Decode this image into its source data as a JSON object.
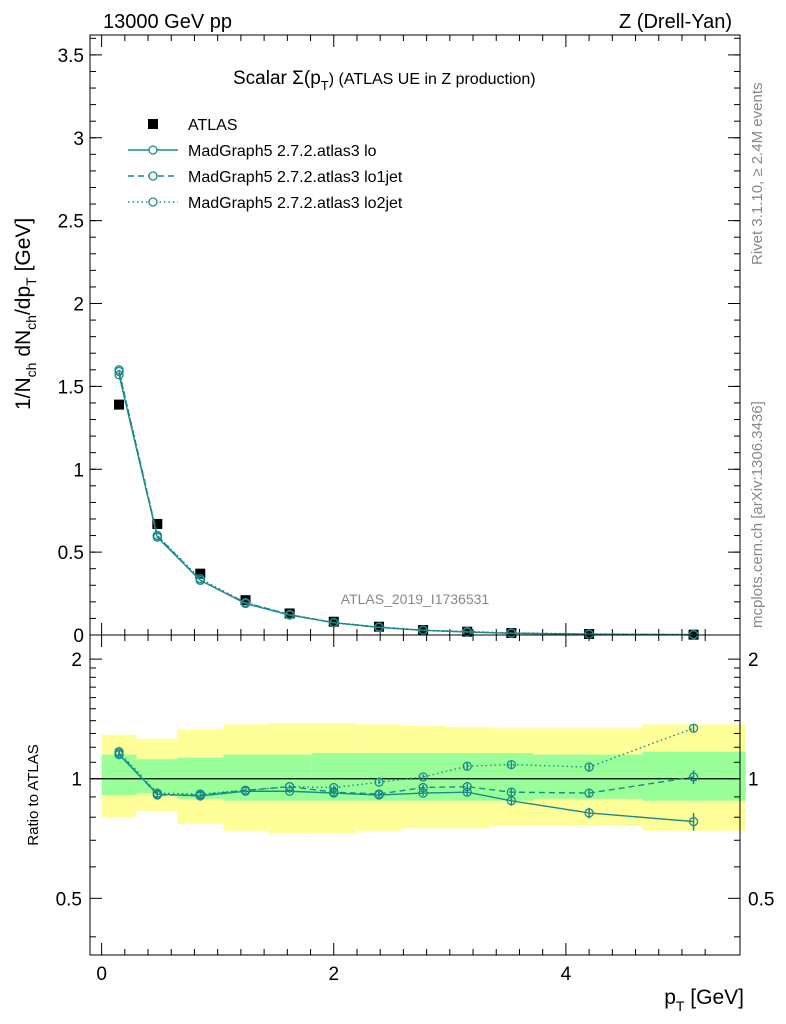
{
  "header": {
    "left": "13000 GeV pp",
    "right": "Z (Drell-Yan)"
  },
  "side_labels": {
    "rivet": "Rivet 3.1.10, ≥ 2.4M events",
    "mcplots": "mcplots.cern.ch [arXiv:1306.3436]"
  },
  "colors": {
    "atlas": "#000000",
    "mc": "#1a8a8a",
    "band_inner": "#99ff99",
    "band_outer": "#ffff99"
  },
  "chart_data": [
    {
      "type": "line",
      "title_prefix": "Scalar Σ(p",
      "title_sub": "T",
      "title_suffix": ") (ATLAS UE in Z production)",
      "watermark": "ATLAS_2019_I1736531",
      "ylabel": "1/N_ch dN_ch/dp_T [GeV]",
      "ylim": [
        0,
        3.62
      ],
      "yticks": [
        0,
        0.5,
        1,
        1.5,
        2,
        2.5,
        3,
        3.5
      ],
      "ytick_labels": [
        "0",
        "0.5",
        "1",
        "1.5",
        "2",
        "2.5",
        "3",
        "3.5"
      ],
      "xlim": [
        -0.1,
        5.5
      ],
      "x": [
        0.15,
        0.48,
        0.85,
        1.24,
        1.62,
        2.0,
        2.39,
        2.77,
        3.15,
        3.53,
        4.2,
        5.1
      ],
      "series": [
        {
          "name": "ATLAS",
          "style": "marker",
          "values": [
            1.39,
            0.67,
            0.37,
            0.21,
            0.13,
            0.08,
            0.05,
            0.03,
            0.02,
            0.012,
            0.006,
            0.002
          ]
        },
        {
          "name": "MadGraph5 2.7.2.atlas3 lo",
          "style": "solid",
          "values": [
            1.57,
            0.59,
            0.33,
            0.19,
            0.12,
            0.074,
            0.046,
            0.028,
            0.018,
            0.0105,
            0.0049,
            0.0016
          ]
        },
        {
          "name": "MadGraph5 2.7.2.atlas3 lo1jet",
          "style": "dashed",
          "values": [
            1.59,
            0.6,
            0.33,
            0.195,
            0.123,
            0.074,
            0.046,
            0.028,
            0.019,
            0.011,
            0.0055,
            0.002
          ]
        },
        {
          "name": "MadGraph5 2.7.2.atlas3 lo2jet",
          "style": "dotted",
          "values": [
            1.6,
            0.6,
            0.34,
            0.195,
            0.124,
            0.076,
            0.049,
            0.03,
            0.021,
            0.013,
            0.0065,
            0.0026
          ]
        }
      ]
    },
    {
      "type": "line",
      "ylabel": "Ratio to ATLAS",
      "xlabel": "p_T [GeV]",
      "ylim": [
        0.36,
        2.3
      ],
      "scale": "log",
      "yticks": [
        0.5,
        1,
        2
      ],
      "ytick_labels": [
        "0.5",
        "1",
        "2"
      ],
      "xlim": [
        -0.1,
        5.5
      ],
      "xticks": [
        0,
        2,
        4
      ],
      "xtick_labels": [
        "0",
        "2",
        "4"
      ],
      "x": [
        0.15,
        0.48,
        0.85,
        1.24,
        1.62,
        2.0,
        2.39,
        2.77,
        3.15,
        3.53,
        4.2,
        5.1
      ],
      "bands": {
        "x_edges": [
          0.0,
          0.3,
          0.65,
          1.05,
          1.43,
          1.81,
          2.2,
          2.58,
          2.96,
          3.34,
          3.72,
          4.66,
          5.55
        ],
        "inner": [
          [
            0.91,
            1.15
          ],
          [
            0.92,
            1.12
          ],
          [
            0.89,
            1.13
          ],
          [
            0.88,
            1.15
          ],
          [
            0.88,
            1.15
          ],
          [
            0.88,
            1.16
          ],
          [
            0.88,
            1.16
          ],
          [
            0.88,
            1.16
          ],
          [
            0.88,
            1.16
          ],
          [
            0.88,
            1.16
          ],
          [
            0.89,
            1.15
          ],
          [
            0.88,
            1.17
          ]
        ],
        "outer": [
          [
            0.8,
            1.29
          ],
          [
            0.83,
            1.26
          ],
          [
            0.77,
            1.33
          ],
          [
            0.74,
            1.37
          ],
          [
            0.73,
            1.38
          ],
          [
            0.73,
            1.38
          ],
          [
            0.74,
            1.37
          ],
          [
            0.75,
            1.36
          ],
          [
            0.75,
            1.35
          ],
          [
            0.76,
            1.34
          ],
          [
            0.76,
            1.34
          ],
          [
            0.74,
            1.37
          ]
        ]
      },
      "series": [
        {
          "name": "MadGraph5 2.7.2.atlas3 lo",
          "style": "solid",
          "values": [
            1.15,
            0.915,
            0.905,
            0.93,
            0.93,
            0.92,
            0.91,
            0.92,
            0.925,
            0.88,
            0.82,
            0.78
          ],
          "errors": [
            0.01,
            0.01,
            0.01,
            0.01,
            0.01,
            0.012,
            0.012,
            0.014,
            0.016,
            0.025,
            0.025,
            0.04
          ]
        },
        {
          "name": "MadGraph5 2.7.2.atlas3 lo1jet",
          "style": "dashed",
          "values": [
            1.16,
            0.91,
            0.91,
            0.935,
            0.955,
            0.925,
            0.915,
            0.95,
            0.955,
            0.925,
            0.92,
            1.01
          ],
          "errors": [
            0.01,
            0.01,
            0.01,
            0.01,
            0.01,
            0.012,
            0.012,
            0.015,
            0.018,
            0.02,
            0.025,
            0.04
          ]
        },
        {
          "name": "MadGraph5 2.7.2.atlas3 lo2jet",
          "style": "dotted",
          "values": [
            1.17,
            0.92,
            0.915,
            0.935,
            0.955,
            0.95,
            0.98,
            1.01,
            1.075,
            1.085,
            1.07,
            1.34
          ],
          "errors": [
            0.01,
            0.01,
            0.01,
            0.01,
            0.01,
            0.012,
            0.012,
            0.015,
            0.02,
            0.02,
            0.02,
            0.03
          ]
        }
      ]
    }
  ]
}
